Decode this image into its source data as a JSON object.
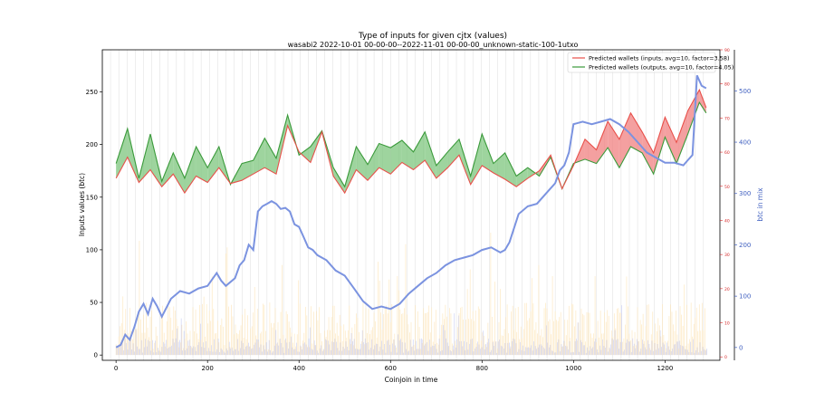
{
  "chart_data": {
    "type": "line",
    "title": "Type of inputs for given cjtx (values)",
    "subtitle": "wasabi2 2022-10-01 00-00-00--2022-11-01 00-00-00_unknown-static-100-1utxo",
    "xlabel": "Coinjoin in time",
    "ylabel": "Inputs values (btc)",
    "y2label": "btc in mix",
    "xlim": [
      -30,
      1320
    ],
    "ylim": [
      -5,
      290
    ],
    "y2lim": [
      -25,
      580
    ],
    "y3lim": [
      -1,
      90
    ],
    "x_ticks": [
      0,
      200,
      400,
      600,
      800,
      1000,
      1200
    ],
    "y_ticks": [
      0,
      50,
      100,
      150,
      200,
      250
    ],
    "y2_ticks": [
      0,
      100,
      200,
      300,
      400,
      500
    ],
    "y3_ticks": [
      0,
      10,
      20,
      30,
      40,
      50,
      60,
      70,
      80,
      90
    ],
    "legend_position": "top-right",
    "grid": "vertical lines only",
    "colors": {
      "inputs": "#e8504a",
      "outputs": "#3a9a3a",
      "fill_inputs_higher": "#f08080",
      "fill_outputs_higher": "#7dc57d",
      "mix": "#7b93e0",
      "bars_blue": "#c9cff5",
      "bars_orange": "#fde3b3",
      "left_axis": "#000000",
      "right_axis_red": "#d62728",
      "right_axis_blue": "#4060c0"
    },
    "series": [
      {
        "name": "Predicted wallets (inputs, avg=10, factor=3.58)",
        "x": [
          0,
          25,
          50,
          75,
          100,
          125,
          150,
          175,
          200,
          225,
          250,
          275,
          300,
          325,
          350,
          375,
          400,
          425,
          450,
          475,
          500,
          525,
          550,
          575,
          600,
          625,
          650,
          675,
          700,
          725,
          750,
          775,
          800,
          825,
          850,
          875,
          900,
          925,
          950,
          975,
          1000,
          1025,
          1050,
          1075,
          1100,
          1125,
          1150,
          1175,
          1200,
          1225,
          1250,
          1275,
          1290
        ],
        "values": [
          168,
          188,
          164,
          176,
          160,
          172,
          154,
          170,
          164,
          178,
          163,
          166,
          172,
          178,
          172,
          218,
          193,
          183,
          212,
          170,
          154,
          176,
          166,
          178,
          172,
          183,
          176,
          185,
          168,
          178,
          190,
          162,
          180,
          173,
          167,
          160,
          168,
          175,
          190,
          158,
          180,
          205,
          195,
          222,
          205,
          230,
          212,
          192,
          226,
          202,
          232,
          252,
          235
        ]
      },
      {
        "name": "Predicted wallets (outputs, avg=10, factor=4.05)",
        "x": [
          0,
          25,
          50,
          75,
          100,
          125,
          150,
          175,
          200,
          225,
          250,
          275,
          300,
          325,
          350,
          375,
          400,
          425,
          450,
          475,
          500,
          525,
          550,
          575,
          600,
          625,
          650,
          675,
          700,
          725,
          750,
          775,
          800,
          825,
          850,
          875,
          900,
          925,
          950,
          975,
          1000,
          1025,
          1050,
          1075,
          1100,
          1125,
          1150,
          1175,
          1200,
          1225,
          1250,
          1275,
          1290
        ],
        "values": [
          182,
          215,
          168,
          210,
          165,
          192,
          168,
          198,
          178,
          198,
          162,
          182,
          185,
          206,
          187,
          228,
          190,
          198,
          213,
          178,
          160,
          198,
          181,
          201,
          197,
          204,
          193,
          212,
          180,
          193,
          205,
          170,
          210,
          182,
          192,
          170,
          178,
          170,
          188,
          158,
          182,
          186,
          182,
          197,
          178,
          198,
          192,
          172,
          207,
          182,
          210,
          240,
          230
        ]
      },
      {
        "name": "btc in mix",
        "axis": "right",
        "x": [
          0,
          10,
          20,
          30,
          40,
          50,
          60,
          70,
          80,
          90,
          100,
          120,
          140,
          160,
          180,
          200,
          220,
          230,
          240,
          260,
          270,
          280,
          290,
          300,
          310,
          320,
          330,
          340,
          350,
          360,
          370,
          380,
          390,
          400,
          410,
          420,
          430,
          440,
          460,
          480,
          500,
          520,
          540,
          560,
          580,
          600,
          620,
          640,
          660,
          680,
          700,
          720,
          740,
          760,
          780,
          800,
          820,
          840,
          850,
          860,
          880,
          900,
          920,
          940,
          960,
          970,
          980,
          990,
          1000,
          1020,
          1040,
          1060,
          1080,
          1100,
          1120,
          1140,
          1160,
          1180,
          1200,
          1220,
          1240,
          1250,
          1260,
          1270,
          1280,
          1290
        ],
        "values": [
          0,
          5,
          25,
          15,
          40,
          70,
          85,
          65,
          95,
          80,
          60,
          95,
          110,
          105,
          115,
          120,
          145,
          130,
          120,
          135,
          160,
          170,
          200,
          190,
          265,
          275,
          280,
          285,
          280,
          270,
          272,
          265,
          240,
          235,
          215,
          195,
          190,
          180,
          170,
          150,
          140,
          115,
          90,
          75,
          80,
          75,
          85,
          105,
          120,
          135,
          145,
          160,
          170,
          175,
          180,
          190,
          195,
          185,
          190,
          205,
          260,
          275,
          280,
          300,
          320,
          345,
          355,
          380,
          435,
          440,
          435,
          440,
          445,
          435,
          420,
          400,
          380,
          370,
          360,
          360,
          355,
          365,
          375,
          530,
          510,
          505
        ]
      }
    ],
    "annotations": [
      "Predicted wallets (inputs, avg=10, factor=3.58)",
      "Predicted wallets (outputs, avg=10, factor=4.05)"
    ]
  }
}
